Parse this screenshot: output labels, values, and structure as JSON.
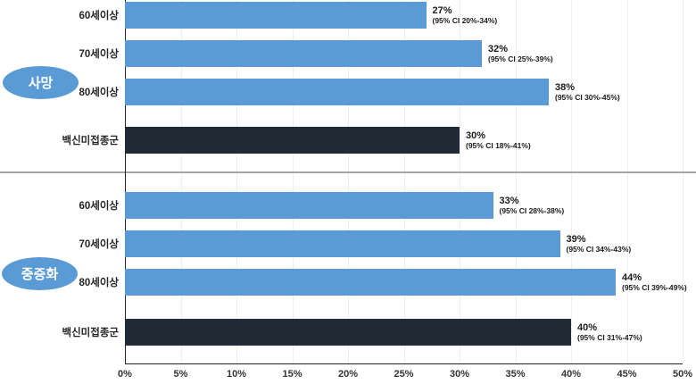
{
  "colors": {
    "bar_blue": "#5b9bd5",
    "bar_dark": "#212b36",
    "badge_fill": "#5b9bd5",
    "divider": "#a6a6a6",
    "axis_line": "#262626",
    "gridline": "#efefef",
    "label_text": "#1a1a1a"
  },
  "axis": {
    "ticks": [
      "0%",
      "5%",
      "10%",
      "15%",
      "20%",
      "25%",
      "30%",
      "35%",
      "40%",
      "45%",
      "50%"
    ]
  },
  "chart_data": {
    "type": "bar",
    "orientation": "horizontal",
    "xlim": [
      0,
      50
    ],
    "x_tick_step": 5,
    "grid": true,
    "legend": "none",
    "groups": [
      {
        "label": "사망",
        "rows": [
          {
            "category": "60세이상",
            "value": 27,
            "value_label": "27%",
            "ci_text": "(95% CI 20%-34%)",
            "ci_low": 20,
            "ci_high": 34,
            "color": "blue"
          },
          {
            "category": "70세이상",
            "value": 32,
            "value_label": "32%",
            "ci_text": "(95% CI 25%-39%)",
            "ci_low": 25,
            "ci_high": 39,
            "color": "blue"
          },
          {
            "category": "80세이상",
            "value": 38,
            "value_label": "38%",
            "ci_text": "(95% CI 30%-45%)",
            "ci_low": 30,
            "ci_high": 45,
            "color": "blue"
          },
          {
            "category": "백신미접종군",
            "value": 30,
            "value_label": "30%",
            "ci_text": "(95% CI 18%-41%)",
            "ci_low": 18,
            "ci_high": 41,
            "color": "dark"
          }
        ]
      },
      {
        "label": "중증화",
        "rows": [
          {
            "category": "60세이상",
            "value": 33,
            "value_label": "33%",
            "ci_text": "(95% CI 28%-38%)",
            "ci_low": 28,
            "ci_high": 38,
            "color": "blue"
          },
          {
            "category": "70세이상",
            "value": 39,
            "value_label": "39%",
            "ci_text": "(95% CI 34%-43%)",
            "ci_low": 34,
            "ci_high": 43,
            "color": "blue"
          },
          {
            "category": "80세이상",
            "value": 44,
            "value_label": "44%",
            "ci_text": "(95% CI 39%-49%)",
            "ci_low": 39,
            "ci_high": 49,
            "color": "blue"
          },
          {
            "category": "백신미접종군",
            "value": 40,
            "value_label": "40%",
            "ci_text": "(95% CI 31%-47%)",
            "ci_low": 31,
            "ci_high": 47,
            "color": "dark"
          }
        ]
      }
    ]
  }
}
